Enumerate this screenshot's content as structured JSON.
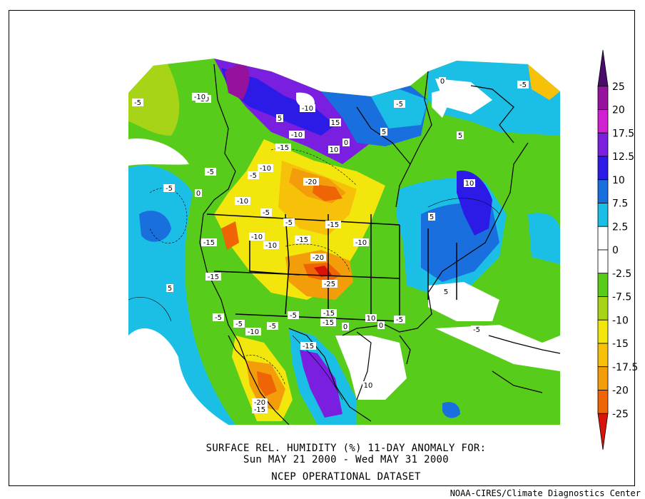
{
  "caption": {
    "line1": "SURFACE REL. HUMIDITY (%)   11-DAY ANOMALY FOR:",
    "line2": "Sun MAY 21 2000 - Wed MAY 31 2000",
    "line3": "NCEP OPERATIONAL DATASET"
  },
  "credit": "NOAA-CIRES/Climate Diagnostics Center",
  "chart_data": {
    "type": "heatmap",
    "title": "SURFACE REL. HUMIDITY (%)   11-DAY ANOMALY FOR:",
    "subtitle": "Sun MAY 21 2000 - Wed MAY 31 2000",
    "colorbar": {
      "levels": [
        {
          "label": "25",
          "color": "#4b0a6e"
        },
        {
          "label": "20",
          "color": "#96129e"
        },
        {
          "label": "17.5",
          "color": "#d11fd2"
        },
        {
          "label": "12.5",
          "color": "#7a1fe0"
        },
        {
          "label": "10",
          "color": "#2c1be6"
        },
        {
          "label": "7.5",
          "color": "#1a6fdf"
        },
        {
          "label": "2.5",
          "color": "#1bbfe6"
        },
        {
          "label": "0",
          "color": "#ffffff"
        },
        {
          "label": "-2.5",
          "color": "#ffffff"
        },
        {
          "label": "-7.5",
          "color": "#58cc1a"
        },
        {
          "label": "-10",
          "color": "#a8d418"
        },
        {
          "label": "-15",
          "color": "#f2e60c"
        },
        {
          "label": "-17.5",
          "color": "#f7c10a"
        },
        {
          "label": "-20",
          "color": "#f49d0a"
        },
        {
          "label": "-25",
          "color": "#ef6405"
        },
        {
          "label": "",
          "color": "#d9130a"
        }
      ]
    },
    "contour_labels": [
      "-10",
      "-5",
      "-5",
      "-5",
      "-10",
      "-10",
      "-10",
      "5",
      "15",
      "10",
      "-15",
      "-10",
      "-20",
      "-5",
      "5",
      "10",
      "-5",
      "0",
      "-10",
      "-5",
      "-15",
      "-15",
      "-10",
      "-15",
      "-20",
      "-25",
      "-15",
      "-10",
      "-15",
      "-15",
      "-5",
      "-5",
      "-10",
      "-5",
      "-5",
      "-15",
      "-20",
      "-15",
      "10",
      "-5",
      "0",
      "-5",
      "5",
      "-5",
      "0",
      "10",
      "5",
      "5",
      "5",
      "-5",
      "0",
      "0",
      "-10"
    ]
  }
}
